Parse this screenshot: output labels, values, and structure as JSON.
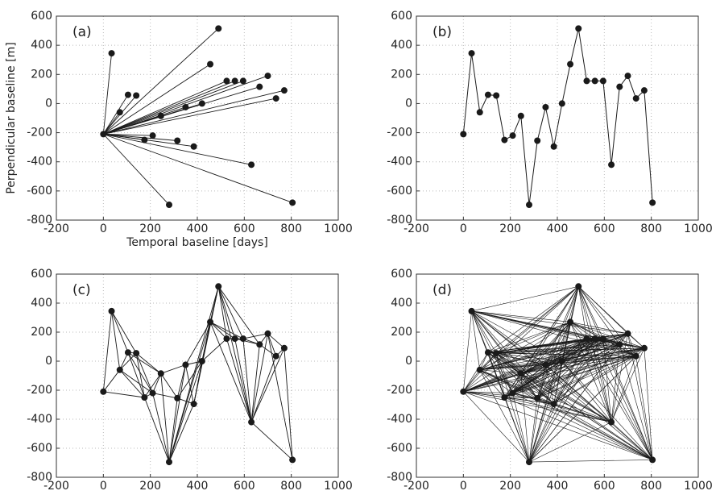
{
  "chart_data": [
    {
      "type": "network",
      "label": "(a)",
      "xlabel": "Temporal baseline [days]",
      "ylabel": "Perpendicular baseline [m]",
      "x": [
        0,
        35,
        70,
        105,
        140,
        175,
        210,
        245,
        280,
        315,
        350,
        385,
        420,
        455,
        490,
        525,
        560,
        595,
        630,
        665,
        700,
        735,
        770,
        805
      ],
      "y": [
        -210,
        345,
        -60,
        60,
        55,
        -250,
        -220,
        -85,
        -695,
        -255,
        -25,
        -295,
        0,
        270,
        515,
        155,
        155,
        155,
        -420,
        115,
        190,
        35,
        90,
        -680
      ],
      "edges": [
        [
          0,
          1
        ],
        [
          0,
          2
        ],
        [
          0,
          3
        ],
        [
          0,
          4
        ],
        [
          0,
          5
        ],
        [
          0,
          6
        ],
        [
          0,
          7
        ],
        [
          0,
          8
        ],
        [
          0,
          9
        ],
        [
          0,
          10
        ],
        [
          0,
          11
        ],
        [
          0,
          12
        ],
        [
          0,
          13
        ],
        [
          0,
          14
        ],
        [
          0,
          15
        ],
        [
          0,
          16
        ],
        [
          0,
          17
        ],
        [
          0,
          18
        ],
        [
          0,
          19
        ],
        [
          0,
          20
        ],
        [
          0,
          21
        ],
        [
          0,
          22
        ],
        [
          0,
          23
        ]
      ],
      "xlim": [
        -200,
        1000
      ],
      "ylim": [
        -800,
        600
      ],
      "xticks": [
        -200,
        0,
        200,
        400,
        600,
        800,
        1000
      ],
      "yticks": [
        -800,
        -600,
        -400,
        -200,
        0,
        200,
        400,
        600
      ],
      "grid": true,
      "color": "#1a1a1a"
    },
    {
      "type": "line",
      "label": "(b)",
      "x": [
        0,
        35,
        70,
        105,
        140,
        175,
        210,
        245,
        280,
        315,
        350,
        385,
        420,
        455,
        490,
        525,
        560,
        595,
        630,
        665,
        700,
        735,
        770,
        805
      ],
      "y": [
        -210,
        345,
        -60,
        60,
        55,
        -250,
        -220,
        -85,
        -695,
        -255,
        -25,
        -295,
        0,
        270,
        515,
        155,
        155,
        155,
        -420,
        115,
        190,
        35,
        90,
        -680
      ],
      "xlim": [
        -200,
        1000
      ],
      "ylim": [
        -800,
        600
      ],
      "xticks": [
        -200,
        0,
        200,
        400,
        600,
        800,
        1000
      ],
      "yticks": [
        -800,
        -600,
        -400,
        -200,
        0,
        200,
        400,
        600
      ],
      "grid": true,
      "color": "#1a1a1a"
    },
    {
      "type": "network",
      "label": "(c)",
      "x": [
        0,
        35,
        70,
        105,
        140,
        175,
        210,
        245,
        280,
        315,
        350,
        385,
        420,
        455,
        490,
        525,
        560,
        595,
        630,
        665,
        700,
        735,
        770,
        805
      ],
      "y": [
        -210,
        345,
        -60,
        60,
        55,
        -250,
        -220,
        -85,
        -695,
        -255,
        -25,
        -295,
        0,
        270,
        515,
        155,
        155,
        155,
        -420,
        115,
        190,
        35,
        90,
        -680
      ],
      "edges": [
        [
          0,
          1
        ],
        [
          0,
          2
        ],
        [
          0,
          5
        ],
        [
          1,
          2
        ],
        [
          1,
          3
        ],
        [
          1,
          4
        ],
        [
          2,
          3
        ],
        [
          2,
          4
        ],
        [
          2,
          5
        ],
        [
          2,
          6
        ],
        [
          3,
          4
        ],
        [
          3,
          5
        ],
        [
          3,
          6
        ],
        [
          3,
          7
        ],
        [
          4,
          5
        ],
        [
          4,
          6
        ],
        [
          4,
          7
        ],
        [
          5,
          6
        ],
        [
          5,
          7
        ],
        [
          5,
          8
        ],
        [
          6,
          7
        ],
        [
          6,
          8
        ],
        [
          6,
          9
        ],
        [
          7,
          8
        ],
        [
          7,
          9
        ],
        [
          7,
          10
        ],
        [
          8,
          9
        ],
        [
          8,
          10
        ],
        [
          8,
          11
        ],
        [
          8,
          12
        ],
        [
          8,
          13
        ],
        [
          8,
          14
        ],
        [
          9,
          10
        ],
        [
          9,
          11
        ],
        [
          9,
          12
        ],
        [
          10,
          11
        ],
        [
          10,
          12
        ],
        [
          10,
          13
        ],
        [
          11,
          12
        ],
        [
          11,
          13
        ],
        [
          11,
          14
        ],
        [
          12,
          13
        ],
        [
          12,
          14
        ],
        [
          12,
          15
        ],
        [
          13,
          14
        ],
        [
          13,
          15
        ],
        [
          13,
          16
        ],
        [
          13,
          17
        ],
        [
          13,
          18
        ],
        [
          14,
          15
        ],
        [
          14,
          16
        ],
        [
          14,
          17
        ],
        [
          14,
          18
        ],
        [
          14,
          19
        ],
        [
          15,
          16
        ],
        [
          15,
          17
        ],
        [
          15,
          18
        ],
        [
          16,
          17
        ],
        [
          16,
          18
        ],
        [
          16,
          19
        ],
        [
          17,
          18
        ],
        [
          17,
          19
        ],
        [
          17,
          20
        ],
        [
          18,
          19
        ],
        [
          18,
          20
        ],
        [
          18,
          21
        ],
        [
          18,
          22
        ],
        [
          18,
          23
        ],
        [
          19,
          20
        ],
        [
          19,
          21
        ],
        [
          20,
          21
        ],
        [
          20,
          22
        ],
        [
          20,
          23
        ],
        [
          21,
          22
        ],
        [
          22,
          23
        ]
      ],
      "xlim": [
        -200,
        1000
      ],
      "ylim": [
        -800,
        600
      ],
      "xticks": [
        -200,
        0,
        200,
        400,
        600,
        800,
        1000
      ],
      "yticks": [
        -800,
        -600,
        -400,
        -200,
        0,
        200,
        400,
        600
      ],
      "grid": true,
      "color": "#1a1a1a"
    },
    {
      "type": "network",
      "label": "(d)",
      "complete_graph": true,
      "x": [
        0,
        35,
        70,
        105,
        140,
        175,
        210,
        245,
        280,
        315,
        350,
        385,
        420,
        455,
        490,
        525,
        560,
        595,
        630,
        665,
        700,
        735,
        770,
        805
      ],
      "y": [
        -210,
        345,
        -60,
        60,
        55,
        -250,
        -220,
        -85,
        -695,
        -255,
        -25,
        -295,
        0,
        270,
        515,
        155,
        155,
        155,
        -420,
        115,
        190,
        35,
        90,
        -680
      ],
      "xlim": [
        -200,
        1000
      ],
      "ylim": [
        -800,
        600
      ],
      "xticks": [
        -200,
        0,
        200,
        400,
        600,
        800,
        1000
      ],
      "yticks": [
        -800,
        -600,
        -400,
        -200,
        0,
        200,
        400,
        600
      ],
      "grid": true,
      "color": "#1a1a1a"
    }
  ]
}
